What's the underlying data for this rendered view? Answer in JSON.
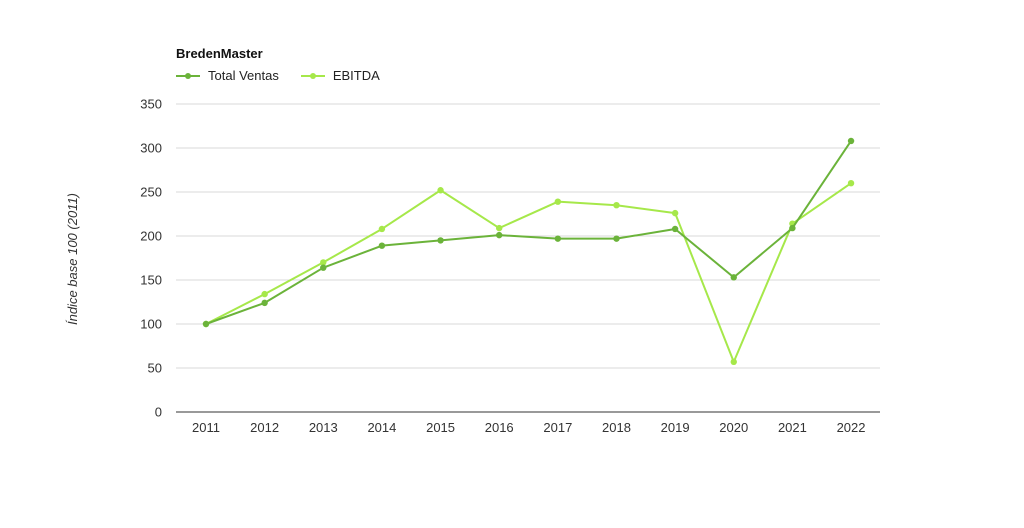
{
  "colors": {
    "total_ventas": "#6bb33a",
    "ebitda": "#a6e84a",
    "grid": "#d9d9d9",
    "axis": "#333333"
  },
  "chart_data": {
    "type": "line",
    "legend_title": "BredenMaster",
    "legend_position": "top-left",
    "ylabel": "Índice base 100 (2011)",
    "xlabel": "",
    "ylim": [
      0,
      350
    ],
    "yticks": [
      0,
      50,
      100,
      150,
      200,
      250,
      300,
      350
    ],
    "grid": true,
    "categories": [
      "2011",
      "2012",
      "2013",
      "2014",
      "2015",
      "2016",
      "2017",
      "2018",
      "2019",
      "2020",
      "2021",
      "2022"
    ],
    "series": [
      {
        "name": "Total Ventas",
        "values": [
          100,
          124,
          164,
          189,
          195,
          201,
          197,
          197,
          208,
          153,
          209,
          308
        ]
      },
      {
        "name": "EBITDA",
        "values": [
          100,
          134,
          170,
          208,
          252,
          209,
          239,
          235,
          226,
          57,
          214,
          260
        ]
      }
    ]
  }
}
